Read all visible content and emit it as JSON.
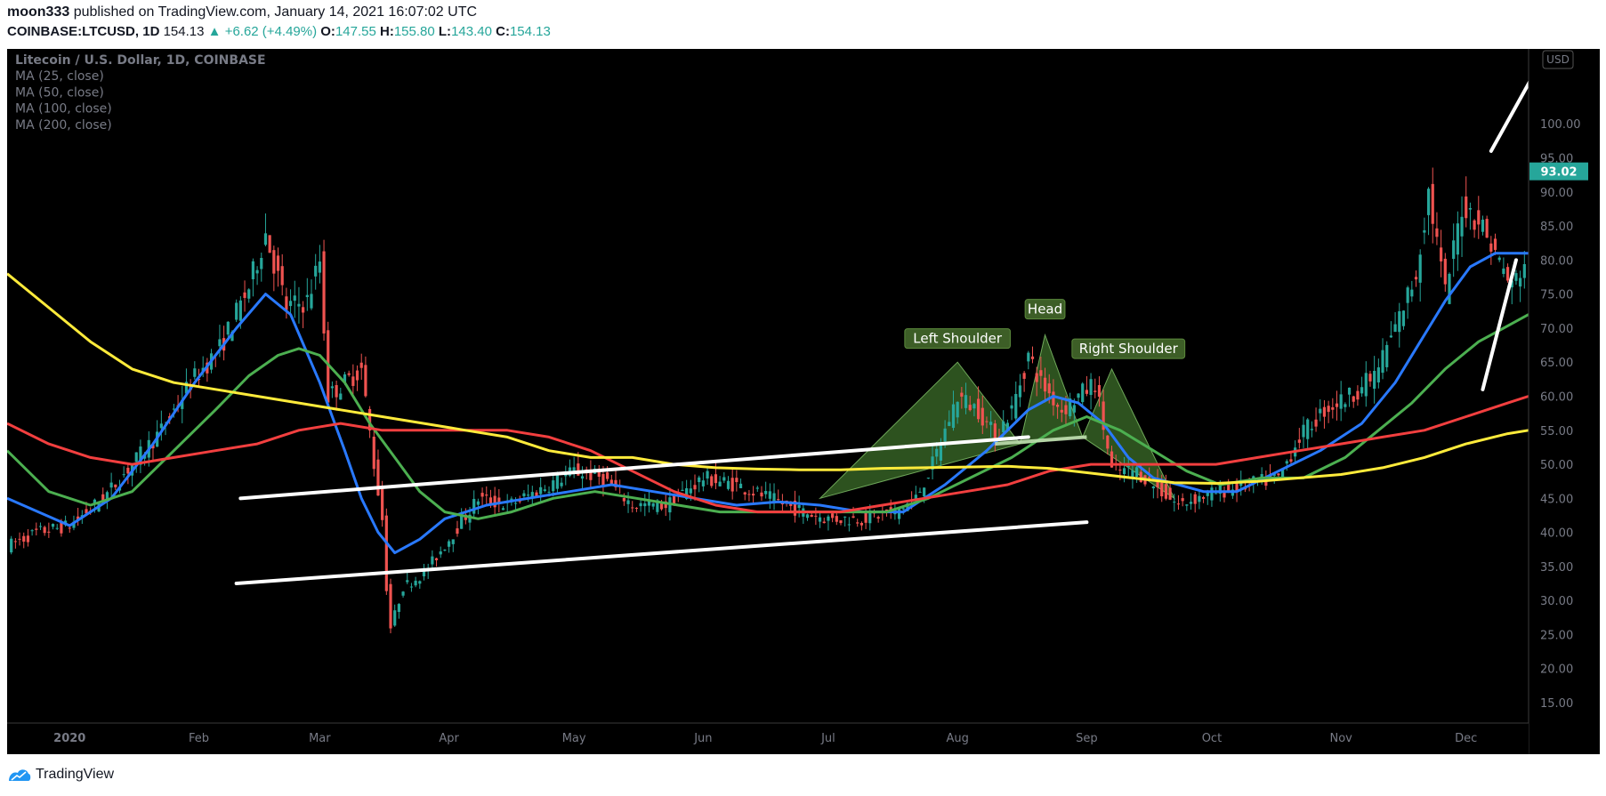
{
  "header": {
    "publisher": "moon333",
    "published_text": "published on TradingView.com, January 14, 2021 16:07:02 UTC",
    "symbol": "COINBASE:LTCUSD",
    "interval": "1D",
    "last": "154.13",
    "change": "+6.62 (+4.49%)",
    "o_label": "O:",
    "o": "147.55",
    "h_label": "H:",
    "h": "155.80",
    "l_label": "L:",
    "l": "143.40",
    "c_label": "C:",
    "c": "154.13"
  },
  "footer": {
    "brand": "TradingView"
  },
  "colors": {
    "background": "#000000",
    "up": "#26a69a",
    "down": "#ef5350",
    "ma25": "#2979ff",
    "ma50": "#4caf50",
    "ma100": "#f23f3f",
    "ma200": "#ffeb3b",
    "pattern_fill": "#3c6e2a",
    "pattern_label_bg": "#3d5e27"
  },
  "chart_data": {
    "type": "candlestick",
    "legend": {
      "title": "Litecoin / U.S. Dollar, 1D, COINBASE",
      "series": [
        "MA (25, close)",
        "MA (50, close)",
        "MA (100, close)",
        "MA (200, close)"
      ],
      "placement": "top-left"
    },
    "currency_badge": "USD",
    "last_price_label": "93.02",
    "last_price": 93.02,
    "y_axis": {
      "range": [
        12,
        111
      ],
      "ticks": [
        "15.00",
        "20.00",
        "25.00",
        "30.00",
        "35.00",
        "40.00",
        "45.00",
        "50.00",
        "55.00",
        "60.00",
        "65.00",
        "70.00",
        "75.00",
        "80.00",
        "85.00",
        "90.00",
        "95.00",
        "100.00"
      ],
      "tick_values": [
        15,
        20,
        25,
        30,
        35,
        40,
        45,
        50,
        55,
        60,
        65,
        70,
        75,
        80,
        85,
        90,
        95,
        100
      ]
    },
    "x_axis": {
      "labels": [
        "2020",
        "Feb",
        "Mar",
        "Apr",
        "May",
        "Jun",
        "Jul",
        "Aug",
        "Sep",
        "Oct",
        "Nov",
        "Dec"
      ],
      "label_days": [
        0,
        31,
        60,
        91,
        121,
        152,
        182,
        213,
        244,
        274,
        305,
        335
      ],
      "range_days": [
        -15,
        350
      ]
    },
    "price_path": [
      [
        -15,
        38
      ],
      [
        -8,
        40
      ],
      [
        0,
        41
      ],
      [
        8,
        45
      ],
      [
        15,
        50
      ],
      [
        22,
        55
      ],
      [
        29,
        62
      ],
      [
        36,
        67
      ],
      [
        43,
        76
      ],
      [
        47,
        84
      ],
      [
        52,
        73
      ],
      [
        57,
        74
      ],
      [
        60,
        80
      ],
      [
        62,
        60
      ],
      [
        66,
        62
      ],
      [
        70,
        64
      ],
      [
        73,
        50
      ],
      [
        75,
        42
      ],
      [
        76,
        32
      ],
      [
        77,
        26
      ],
      [
        80,
        32
      ],
      [
        85,
        34
      ],
      [
        91,
        39
      ],
      [
        98,
        45
      ],
      [
        105,
        44
      ],
      [
        112,
        46
      ],
      [
        121,
        49
      ],
      [
        128,
        48
      ],
      [
        135,
        44
      ],
      [
        143,
        44
      ],
      [
        152,
        48
      ],
      [
        160,
        47
      ],
      [
        168,
        45
      ],
      [
        176,
        43
      ],
      [
        182,
        42
      ],
      [
        190,
        42
      ],
      [
        198,
        43
      ],
      [
        203,
        45
      ],
      [
        207,
        50
      ],
      [
        213,
        60
      ],
      [
        218,
        58
      ],
      [
        222,
        54
      ],
      [
        226,
        58
      ],
      [
        230,
        66
      ],
      [
        233,
        62
      ],
      [
        238,
        58
      ],
      [
        242,
        60
      ],
      [
        246,
        62
      ],
      [
        250,
        49
      ],
      [
        256,
        49
      ],
      [
        262,
        46
      ],
      [
        266,
        44
      ],
      [
        270,
        45
      ],
      [
        276,
        46
      ],
      [
        283,
        47
      ],
      [
        290,
        48
      ],
      [
        295,
        54
      ],
      [
        301,
        58
      ],
      [
        307,
        60
      ],
      [
        313,
        63
      ],
      [
        318,
        70
      ],
      [
        323,
        78
      ],
      [
        326,
        90
      ],
      [
        330,
        75
      ],
      [
        334,
        88
      ],
      [
        338,
        86
      ],
      [
        342,
        81
      ],
      [
        346,
        76
      ],
      [
        350,
        81
      ]
    ],
    "moving_averages": [
      {
        "name": "MA (25, close)",
        "color": "#2979ff",
        "points": [
          [
            -15,
            45
          ],
          [
            0,
            41
          ],
          [
            10,
            45
          ],
          [
            20,
            53
          ],
          [
            30,
            62
          ],
          [
            40,
            70
          ],
          [
            47,
            75
          ],
          [
            53,
            72
          ],
          [
            60,
            62
          ],
          [
            66,
            52
          ],
          [
            70,
            45
          ],
          [
            74,
            40
          ],
          [
            78,
            37
          ],
          [
            84,
            39
          ],
          [
            90,
            42
          ],
          [
            100,
            44
          ],
          [
            110,
            45
          ],
          [
            120,
            46
          ],
          [
            130,
            47
          ],
          [
            140,
            46
          ],
          [
            150,
            45
          ],
          [
            160,
            44
          ],
          [
            170,
            44.5
          ],
          [
            180,
            44
          ],
          [
            190,
            43
          ],
          [
            200,
            43
          ],
          [
            210,
            47
          ],
          [
            220,
            52
          ],
          [
            230,
            58
          ],
          [
            236,
            60
          ],
          [
            242,
            59
          ],
          [
            248,
            56
          ],
          [
            254,
            51
          ],
          [
            260,
            48
          ],
          [
            266,
            47
          ],
          [
            272,
            46
          ],
          [
            280,
            46
          ],
          [
            290,
            49
          ],
          [
            300,
            52
          ],
          [
            310,
            56
          ],
          [
            318,
            62
          ],
          [
            324,
            68
          ],
          [
            330,
            74
          ],
          [
            336,
            79
          ],
          [
            342,
            81
          ],
          [
            350,
            81
          ]
        ]
      },
      {
        "name": "MA (50, close)",
        "color": "#4caf50",
        "points": [
          [
            -15,
            52
          ],
          [
            -5,
            46
          ],
          [
            5,
            44
          ],
          [
            15,
            46
          ],
          [
            25,
            52
          ],
          [
            35,
            58
          ],
          [
            43,
            63
          ],
          [
            50,
            66
          ],
          [
            55,
            67
          ],
          [
            60,
            66
          ],
          [
            66,
            62
          ],
          [
            72,
            56
          ],
          [
            78,
            51
          ],
          [
            84,
            46
          ],
          [
            90,
            43
          ],
          [
            98,
            42
          ],
          [
            106,
            43
          ],
          [
            116,
            45
          ],
          [
            126,
            46
          ],
          [
            136,
            45
          ],
          [
            146,
            44
          ],
          [
            156,
            43
          ],
          [
            166,
            43
          ],
          [
            176,
            43
          ],
          [
            186,
            43
          ],
          [
            196,
            43
          ],
          [
            206,
            45
          ],
          [
            216,
            48
          ],
          [
            226,
            51
          ],
          [
            236,
            55
          ],
          [
            244,
            57
          ],
          [
            252,
            55
          ],
          [
            260,
            52
          ],
          [
            268,
            49
          ],
          [
            276,
            47
          ],
          [
            286,
            48
          ],
          [
            296,
            48
          ],
          [
            306,
            51
          ],
          [
            314,
            55
          ],
          [
            322,
            59
          ],
          [
            330,
            64
          ],
          [
            338,
            68
          ],
          [
            344,
            70
          ],
          [
            350,
            72
          ]
        ]
      },
      {
        "name": "MA (100, close)",
        "color": "#f23f3f",
        "points": [
          [
            -15,
            56
          ],
          [
            -5,
            53
          ],
          [
            5,
            51
          ],
          [
            15,
            50
          ],
          [
            25,
            51
          ],
          [
            35,
            52
          ],
          [
            45,
            53
          ],
          [
            55,
            55
          ],
          [
            65,
            56
          ],
          [
            75,
            55
          ],
          [
            85,
            55
          ],
          [
            95,
            55
          ],
          [
            105,
            55
          ],
          [
            115,
            54
          ],
          [
            125,
            52
          ],
          [
            135,
            49
          ],
          [
            145,
            46
          ],
          [
            155,
            44
          ],
          [
            165,
            43
          ],
          [
            175,
            43
          ],
          [
            185,
            43
          ],
          [
            195,
            44
          ],
          [
            205,
            45
          ],
          [
            215,
            46
          ],
          [
            225,
            47
          ],
          [
            235,
            49
          ],
          [
            245,
            50
          ],
          [
            255,
            50
          ],
          [
            265,
            50
          ],
          [
            275,
            50
          ],
          [
            285,
            51
          ],
          [
            295,
            52
          ],
          [
            305,
            53
          ],
          [
            315,
            54
          ],
          [
            325,
            55
          ],
          [
            335,
            57
          ],
          [
            345,
            59
          ],
          [
            350,
            60
          ]
        ]
      },
      {
        "name": "MA (200, close)",
        "color": "#ffeb3b",
        "points": [
          [
            -15,
            78
          ],
          [
            -5,
            73
          ],
          [
            5,
            68
          ],
          [
            15,
            64
          ],
          [
            25,
            62
          ],
          [
            35,
            61
          ],
          [
            45,
            60
          ],
          [
            55,
            59
          ],
          [
            65,
            58
          ],
          [
            75,
            57
          ],
          [
            85,
            56
          ],
          [
            95,
            55
          ],
          [
            105,
            54
          ],
          [
            115,
            52
          ],
          [
            125,
            51
          ],
          [
            135,
            51
          ],
          [
            145,
            50
          ],
          [
            155,
            49.5
          ],
          [
            165,
            49.3
          ],
          [
            175,
            49.2
          ],
          [
            185,
            49.2
          ],
          [
            195,
            49.4
          ],
          [
            205,
            49.5
          ],
          [
            215,
            49.6
          ],
          [
            225,
            49.7
          ],
          [
            235,
            49.4
          ],
          [
            245,
            48.7
          ],
          [
            255,
            48
          ],
          [
            265,
            47.3
          ],
          [
            275,
            47.2
          ],
          [
            285,
            47.5
          ],
          [
            295,
            48
          ],
          [
            305,
            48.5
          ],
          [
            315,
            49.5
          ],
          [
            325,
            51
          ],
          [
            335,
            53
          ],
          [
            345,
            54.5
          ],
          [
            350,
            55
          ]
        ]
      }
    ],
    "trendlines": [
      {
        "from": [
          41,
          45
        ],
        "to": [
          230,
          54
        ]
      },
      {
        "from": [
          40,
          32.5
        ],
        "to": [
          244,
          41.5
        ]
      },
      {
        "from": [
          341,
          96
        ],
        "to": [
          351,
          107
        ]
      },
      {
        "from": [
          339,
          61
        ],
        "to": [
          347,
          80
        ]
      }
    ],
    "pattern": {
      "labels": [
        "Left Shoulder",
        "Head",
        "Right Shoulder"
      ],
      "points": [
        [
          180,
          45
        ],
        [
          213,
          65
        ],
        [
          228,
          53
        ],
        [
          234,
          69
        ],
        [
          243,
          54
        ],
        [
          250,
          64
        ],
        [
          265,
          45
        ]
      ],
      "neckline": [
        [
          222,
          53
        ],
        [
          244,
          54
        ]
      ]
    }
  }
}
